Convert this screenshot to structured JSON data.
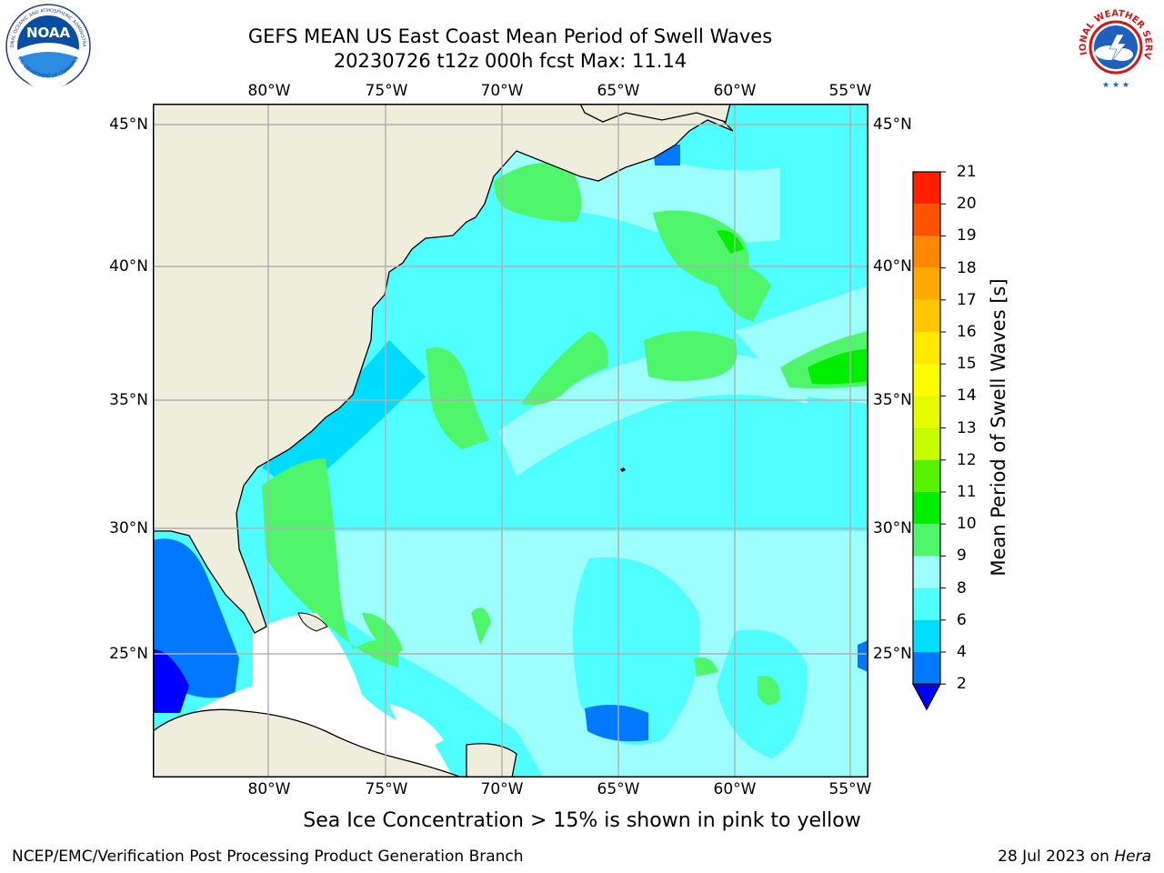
{
  "title": {
    "line1": "GEFS MEAN US East Coast Mean Period of Swell Waves",
    "line2": "20230726 t12z 000h fcst   Max: 11.14"
  },
  "map": {
    "lon_labels": [
      "80°W",
      "75°W",
      "70°W",
      "65°W",
      "60°W",
      "55°W"
    ],
    "lat_labels_left": [
      "45°N",
      "40°N",
      "35°N",
      "30°N",
      "25°N"
    ],
    "lat_labels_right": [
      "45°N",
      "40°N",
      "35°N",
      "30°N",
      "25°N"
    ],
    "colors": {
      "land": "#efeedd",
      "missing": "#ffffff",
      "grid": "#b0b0b0",
      "coast": "#000000"
    }
  },
  "colorbar": {
    "title": "Mean Period of Swell Waves [s]",
    "ticks": [
      "2",
      "4",
      "6",
      "8",
      "9",
      "10",
      "11",
      "12",
      "13",
      "14",
      "15",
      "16",
      "17",
      "18",
      "19",
      "20",
      "21"
    ],
    "colors": [
      "#0078ff",
      "#00dcff",
      "#4ffeff",
      "#9dfffb",
      "#4ff56b",
      "#00ef00",
      "#56f300",
      "#c7fc00",
      "#e5fc00",
      "#fffc00",
      "#ffe900",
      "#ffc700",
      "#ffaa00",
      "#ff8800",
      "#ff5200",
      "#ff1e00"
    ],
    "under_color": "#0000ff"
  },
  "logos": {
    "noaa_text": "NOAA",
    "noaa_ring_top": "NATIONAL OCEANIC AND ATMOSPHERIC ADMINISTRATION",
    "noaa_ring_bottom": "U.S. DEPARTMENT OF COMMERCE",
    "nws_ring": "NATIONAL WEATHER SERVICE"
  },
  "caption": "Sea Ice Concentration > 15% is shown in pink to yellow",
  "footer": {
    "left": "NCEP/EMC/Verification Post Processing Product Generation Branch",
    "right_prefix": "28 Jul 2023 on ",
    "right_host": "Hera"
  }
}
